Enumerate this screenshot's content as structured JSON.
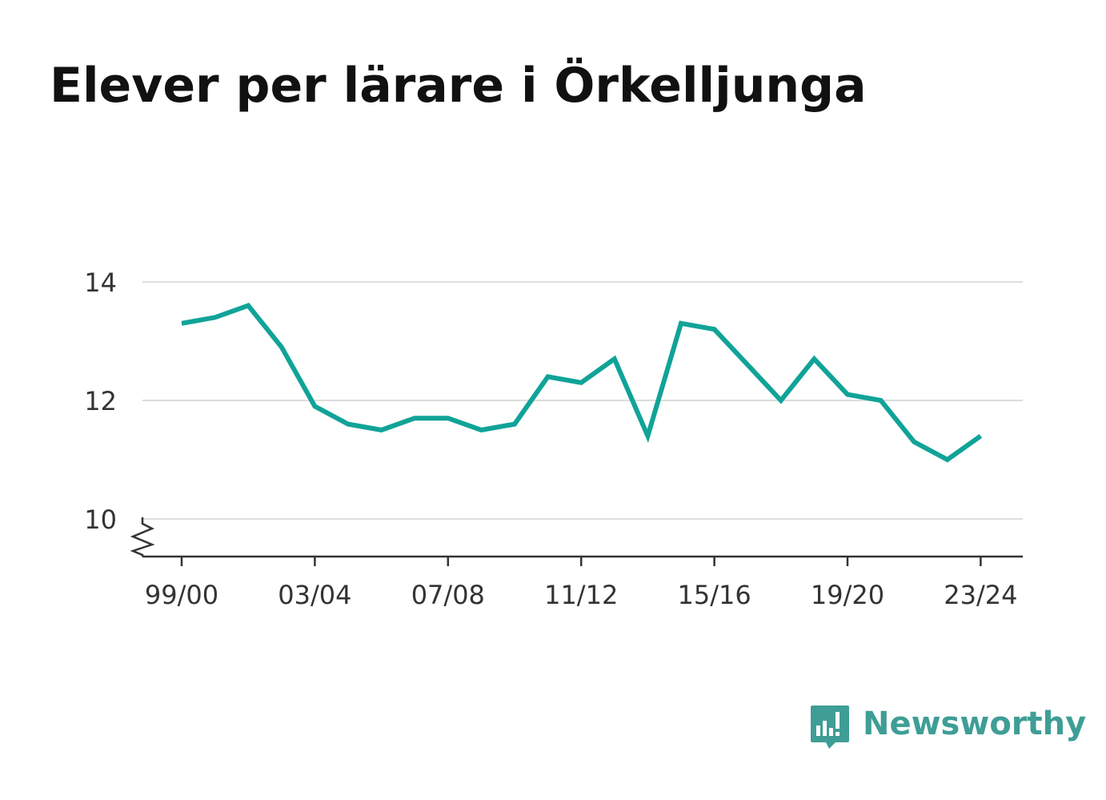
{
  "brand": {
    "name": "Newsworthy",
    "color": "#3e9e96",
    "icon": "bar-chart-speech-bubble-icon"
  },
  "chart_data": {
    "type": "line",
    "title": "Elever per lärare i Örkelljunga",
    "xlabel": "",
    "ylabel": "",
    "categories": [
      "99/00",
      "00/01",
      "01/02",
      "02/03",
      "03/04",
      "04/05",
      "05/06",
      "06/07",
      "07/08",
      "08/09",
      "09/10",
      "10/11",
      "11/12",
      "12/13",
      "13/14",
      "14/15",
      "15/16",
      "16/17",
      "17/18",
      "18/19",
      "19/20",
      "20/21",
      "21/22",
      "22/23",
      "23/24"
    ],
    "x_tick_labels": [
      "99/00",
      "03/04",
      "07/08",
      "11/12",
      "15/16",
      "19/20",
      "23/24"
    ],
    "y_ticks": [
      10,
      12,
      14
    ],
    "ylim": [
      9.4,
      14
    ],
    "y_axis_break": true,
    "grid": "horizontal",
    "series": [
      {
        "color": "#11a398",
        "values": [
          13.3,
          13.4,
          13.6,
          12.9,
          11.9,
          11.6,
          11.5,
          11.7,
          11.7,
          11.5,
          11.6,
          12.4,
          12.3,
          12.7,
          11.4,
          13.3,
          13.2,
          12.6,
          12.0,
          12.7,
          12.1,
          12.0,
          11.3,
          11.0,
          11.4
        ]
      }
    ]
  }
}
